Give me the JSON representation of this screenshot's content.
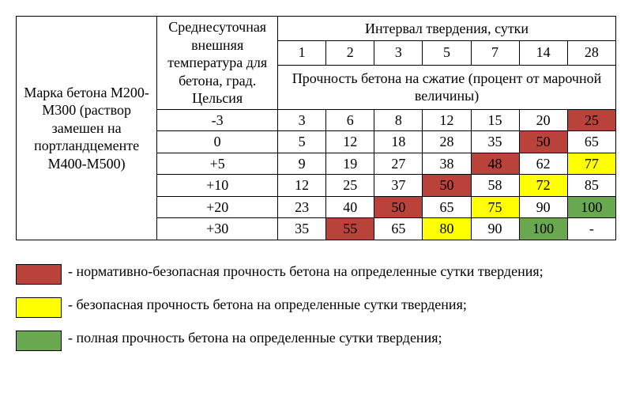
{
  "table": {
    "mark_header": "Марка бетона М200-М300 (раствор замешен на портландцементе М400-М500)",
    "temp_header": "Среднесуточная внешняя температура для бетона, град. Цельсия",
    "interval_header": "Интервал твердения, сутки",
    "days": [
      "1",
      "2",
      "3",
      "5",
      "7",
      "14",
      "28"
    ],
    "strength_header": "Прочность бетона на сжатие (процент от марочной величины)",
    "rows": [
      {
        "temp": "-3",
        "vals": [
          "3",
          "6",
          "8",
          "12",
          "15",
          "20",
          "25"
        ],
        "classes": [
          "",
          "",
          "",
          "",
          "",
          "",
          "red"
        ]
      },
      {
        "temp": "0",
        "vals": [
          "5",
          "12",
          "18",
          "28",
          "35",
          "50",
          "65"
        ],
        "classes": [
          "",
          "",
          "",
          "",
          "",
          "red",
          ""
        ]
      },
      {
        "temp": "+5",
        "vals": [
          "9",
          "19",
          "27",
          "38",
          "48",
          "62",
          "77"
        ],
        "classes": [
          "",
          "",
          "",
          "",
          "red",
          "",
          "yellow"
        ]
      },
      {
        "temp": "+10",
        "vals": [
          "12",
          "25",
          "37",
          "50",
          "58",
          "72",
          "85"
        ],
        "classes": [
          "",
          "",
          "",
          "red",
          "",
          "yellow",
          ""
        ]
      },
      {
        "temp": "+20",
        "vals": [
          "23",
          "40",
          "50",
          "65",
          "75",
          "90",
          "100"
        ],
        "classes": [
          "",
          "",
          "red",
          "",
          "yellow",
          "",
          "green"
        ]
      },
      {
        "temp": "+30",
        "vals": [
          "35",
          "55",
          "65",
          "80",
          "90",
          "100",
          "-"
        ],
        "classes": [
          "",
          "red",
          "",
          "yellow",
          "",
          "green",
          ""
        ]
      }
    ]
  },
  "legend": {
    "red": " - нормативно-безопасная прочность бетона на определенные сутки твердения;",
    "yellow": " - безопасная прочность бетона на определенные сутки твердения;",
    "green": " - полная прочность бетона на определенные сутки твердения;"
  },
  "colors": {
    "red": "#b9423a",
    "yellow": "#ffff00",
    "green": "#6aa84f"
  }
}
